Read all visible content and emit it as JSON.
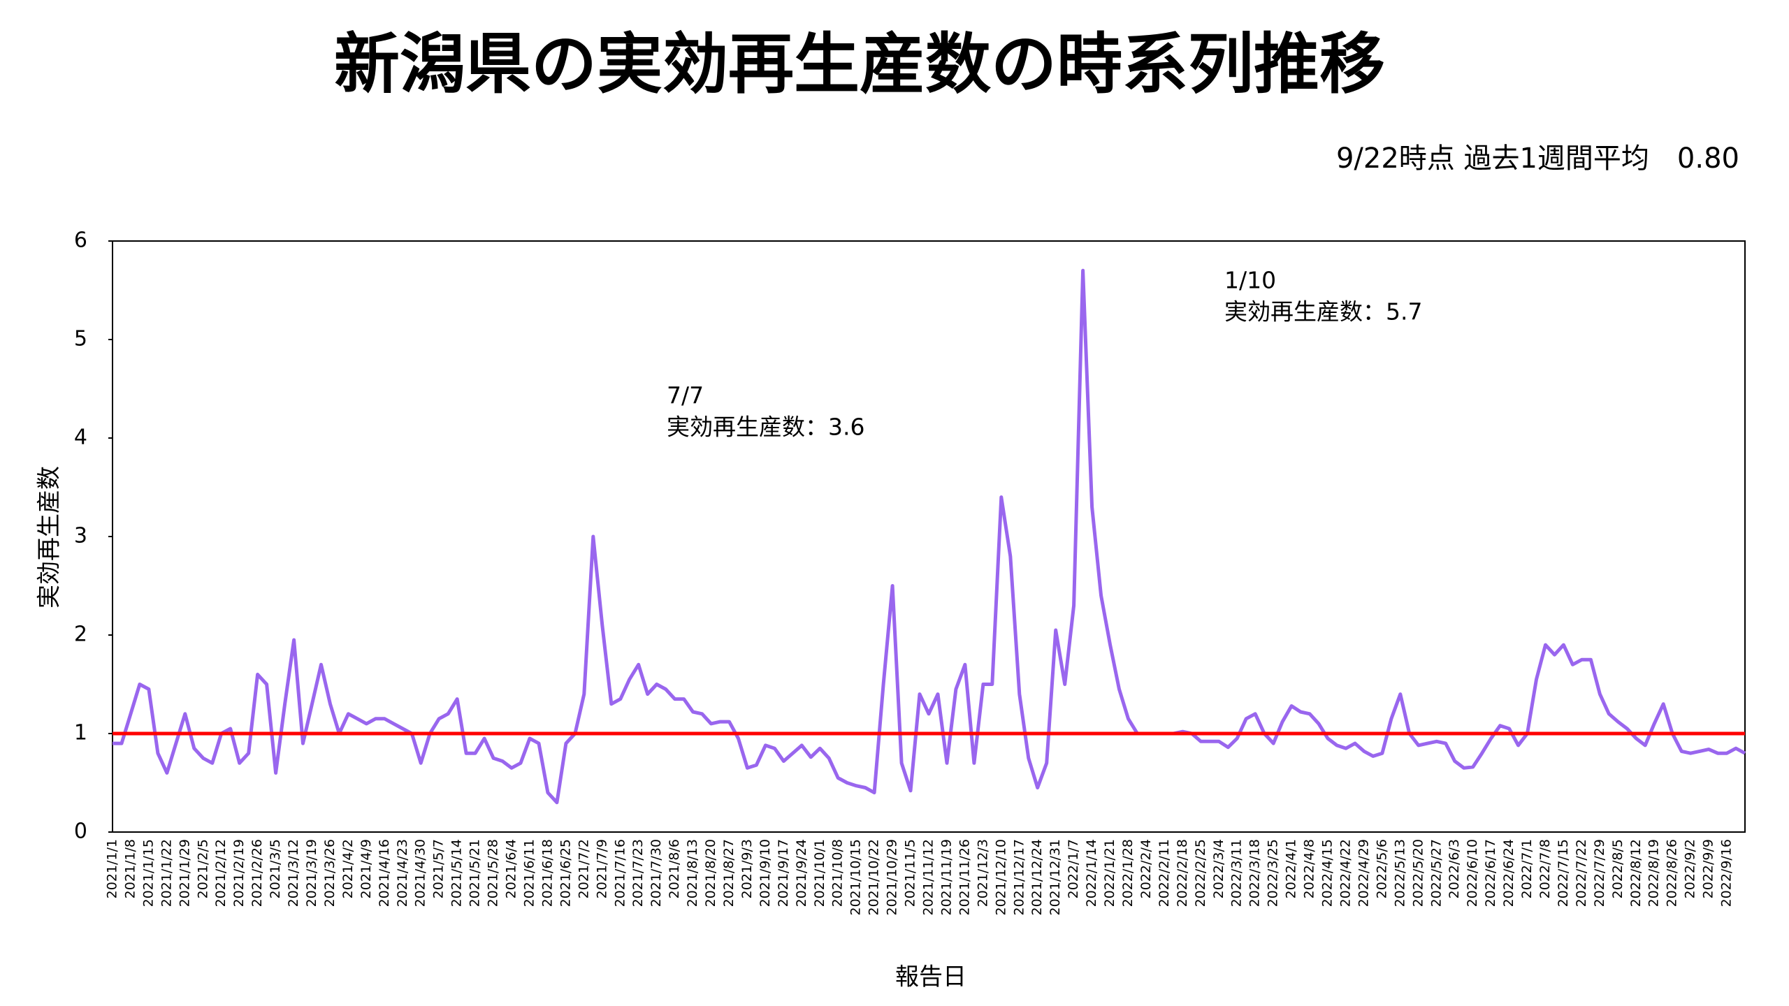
{
  "chart_data": {
    "type": "line",
    "title": "新潟県の実効再生産数の時系列推移",
    "subtitle": "9/22時点 過去1週間平均　0.80",
    "x_label": "報告日",
    "y_label": "実効再生産数",
    "color": "#9966ee",
    "ylim": [
      0,
      6
    ],
    "yticks": [
      0,
      1,
      2,
      3,
      4,
      5,
      6
    ],
    "reference_line": {
      "value": 1,
      "color": "#ff0000"
    },
    "annotations": [
      [
        "7/7",
        "実効再生産数：3.6"
      ],
      [
        "1/10",
        "実効再生産数：5.7"
      ]
    ],
    "categories": [
      "2021/1/1",
      null,
      "2021/1/8",
      null,
      "2021/1/15",
      null,
      "2021/1/22",
      null,
      "2021/1/29",
      null,
      "2021/2/5",
      null,
      "2021/2/12",
      null,
      "2021/2/19",
      null,
      "2021/2/26",
      null,
      "2021/3/5",
      null,
      "2021/3/12",
      null,
      "2021/3/19",
      null,
      "2021/3/26",
      null,
      "2021/4/2",
      null,
      "2021/4/9",
      null,
      "2021/4/16",
      null,
      "2021/4/23",
      null,
      "2021/4/30",
      null,
      "2021/5/7",
      null,
      "2021/5/14",
      null,
      "2021/5/21",
      null,
      "2021/5/28",
      null,
      "2021/6/4",
      null,
      "2021/6/11",
      null,
      "2021/6/18",
      null,
      "2021/6/25",
      null,
      "2021/7/2",
      null,
      "2021/7/9",
      null,
      "2021/7/16",
      null,
      "2021/7/23",
      null,
      "2021/7/30",
      null,
      "2021/8/6",
      null,
      "2021/8/13",
      null,
      "2021/8/20",
      null,
      "2021/8/27",
      null,
      "2021/9/3",
      null,
      "2021/9/10",
      null,
      "2021/9/17",
      null,
      "2021/9/24",
      null,
      "2021/10/1",
      null,
      "2021/10/8",
      null,
      "2021/10/15",
      null,
      "2021/10/22",
      null,
      "2021/10/29",
      null,
      "2021/11/5",
      null,
      "2021/11/12",
      null,
      "2021/11/19",
      null,
      "2021/11/26",
      null,
      "2021/12/3",
      null,
      "2021/12/10",
      null,
      "2021/12/17",
      null,
      "2021/12/24",
      null,
      "2021/12/31",
      null,
      "2022/1/7",
      null,
      "2022/1/14",
      null,
      "2022/1/21",
      null,
      "2022/1/28",
      null,
      "2022/2/4",
      null,
      "2022/2/11",
      null,
      "2022/2/18",
      null,
      "2022/2/25",
      null,
      "2022/3/4",
      null,
      "2022/3/11",
      null,
      "2022/3/18",
      null,
      "2022/3/25",
      null,
      "2022/4/1",
      null,
      "2022/4/8",
      null,
      "2022/4/15",
      null,
      "2022/4/22",
      null,
      "2022/4/29",
      null,
      "2022/5/6",
      null,
      "2022/5/13",
      null,
      "2022/5/20",
      null,
      "2022/5/27",
      null,
      "2022/6/3",
      null,
      "2022/6/10",
      null,
      "2022/6/17",
      null,
      "2022/6/24",
      null,
      "2022/7/1",
      null,
      "2022/7/8",
      null,
      "2022/7/15",
      null,
      "2022/7/22",
      null,
      "2022/7/29",
      null,
      "2022/8/5",
      null,
      "2022/8/12",
      null,
      "2022/8/19",
      null,
      "2022/8/26",
      null,
      "2022/9/2",
      null,
      "2022/9/9",
      null,
      "2022/9/16",
      null,
      null
    ],
    "values": [
      0.9,
      0.9,
      1.2,
      1.5,
      1.45,
      0.8,
      0.6,
      0.9,
      1.2,
      0.85,
      0.75,
      0.7,
      1.0,
      1.05,
      0.7,
      0.8,
      1.6,
      1.5,
      0.6,
      1.3,
      1.95,
      0.9,
      1.3,
      1.7,
      1.3,
      1.0,
      1.2,
      1.15,
      1.1,
      1.15,
      1.15,
      1.1,
      1.05,
      1.0,
      0.7,
      1.0,
      1.15,
      1.2,
      1.35,
      0.8,
      0.8,
      0.95,
      0.75,
      0.72,
      0.65,
      0.7,
      0.95,
      0.9,
      0.4,
      0.3,
      0.9,
      1.0,
      1.4,
      3.0,
      2.1,
      1.3,
      1.35,
      1.55,
      1.7,
      1.4,
      1.5,
      1.45,
      1.35,
      1.35,
      1.22,
      1.2,
      1.1,
      1.12,
      1.12,
      0.95,
      0.65,
      0.68,
      0.88,
      0.85,
      0.72,
      0.8,
      0.88,
      0.76,
      0.85,
      0.75,
      0.55,
      0.5,
      0.47,
      0.45,
      0.4,
      1.5,
      2.5,
      0.7,
      0.42,
      1.4,
      1.2,
      1.4,
      0.7,
      1.45,
      1.7,
      0.7,
      1.5,
      1.5,
      3.4,
      2.8,
      1.4,
      0.75,
      0.45,
      0.7,
      2.05,
      1.5,
      2.3,
      5.7,
      3.3,
      2.4,
      1.9,
      1.45,
      1.15,
      1.0,
      1.0,
      1.0,
      1.0,
      1.0,
      1.02,
      1.0,
      0.92,
      0.92,
      0.92,
      0.86,
      0.95,
      1.15,
      1.2,
      1.0,
      0.9,
      1.12,
      1.28,
      1.22,
      1.2,
      1.1,
      0.95,
      0.88,
      0.85,
      0.9,
      0.82,
      0.77,
      0.8,
      1.15,
      1.4,
      1.0,
      0.88,
      0.9,
      0.92,
      0.9,
      0.72,
      0.65,
      0.66,
      0.8,
      0.95,
      1.08,
      1.05,
      0.88,
      1.0,
      1.55,
      1.9,
      1.8,
      1.9,
      1.7,
      1.75,
      1.75,
      1.4,
      1.2,
      1.12,
      1.05,
      0.95,
      0.88,
      1.1,
      1.3,
      1.0,
      0.82,
      0.8,
      0.82,
      0.84,
      0.8,
      0.8,
      0.85,
      0.8
    ]
  }
}
